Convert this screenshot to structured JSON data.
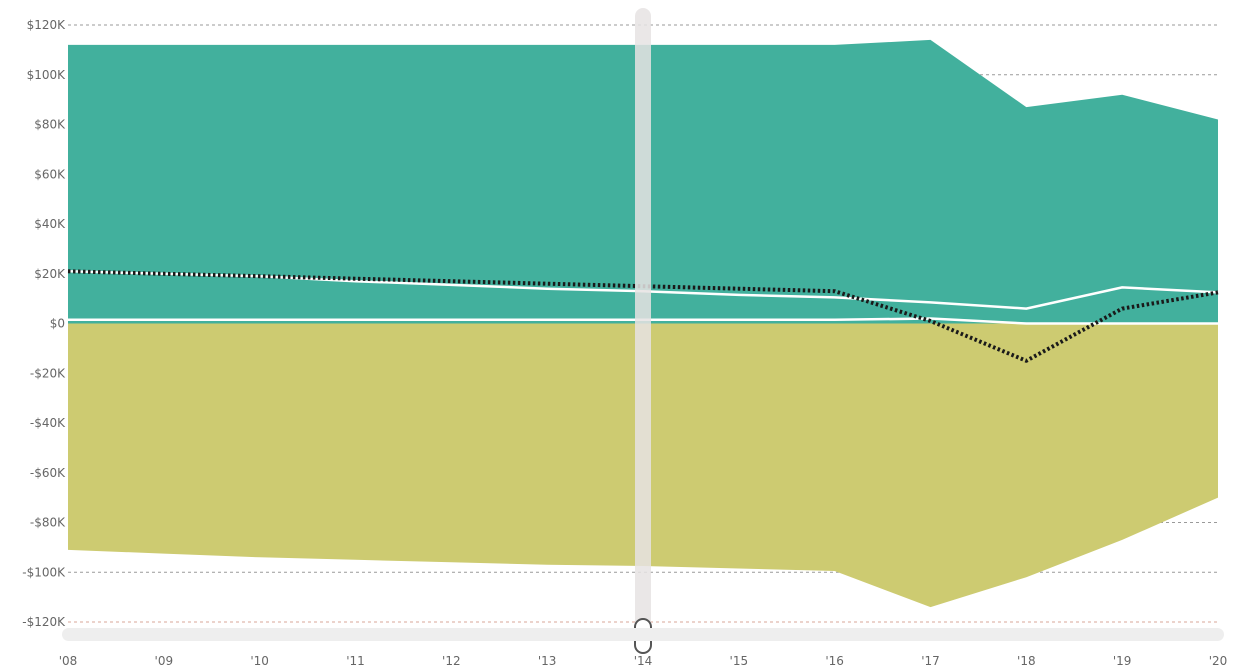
{
  "colors": {
    "positive_area": "#42B09D",
    "negative_area": "#CDCB71",
    "white_line": "#FFFFFF",
    "dotted_line": "#1A1A1A",
    "grid": "#9A9A9A",
    "grid_bottom": "#D9A79A",
    "slider_track": "#E6E3E3",
    "scrollbar": "#EEEEEE",
    "tick_text": "#666666"
  },
  "chart_data": {
    "type": "area",
    "title": "",
    "xlabel": "",
    "ylabel": "",
    "x": [
      "'08",
      "'09",
      "'10",
      "'11",
      "'12",
      "'13",
      "'14",
      "'15",
      "'16",
      "'17",
      "'18",
      "'19",
      "'20"
    ],
    "y_ticks": [
      "$120K",
      "$100K",
      "$80K",
      "$60K",
      "$40K",
      "$20K",
      "$0",
      "-$20K",
      "-$40K",
      "-$60K",
      "-$80K",
      "-$100K",
      "-$120K"
    ],
    "ylim": [
      -120000,
      120000
    ],
    "grid": true,
    "series": [
      {
        "type": "area",
        "values": [
          112000,
          112000,
          112000,
          112000,
          112000,
          112000,
          112000,
          112000,
          112000,
          114000,
          87000,
          92000,
          82000
        ]
      },
      {
        "type": "area",
        "values": [
          -91000,
          -92500,
          -94000,
          -95000,
          -96000,
          -97000,
          -97500,
          -98500,
          -99500,
          -114000,
          -102000,
          -87000,
          -70000
        ]
      },
      {
        "type": "line",
        "values": [
          21000,
          20000,
          19000,
          17000,
          15500,
          14000,
          13000,
          11500,
          10500,
          8500,
          6000,
          14500,
          12500
        ]
      },
      {
        "type": "line",
        "values": [
          1500,
          1500,
          1500,
          1500,
          1500,
          1500,
          1500,
          1500,
          1500,
          2000,
          0,
          0,
          0
        ]
      },
      {
        "type": "dotted-line",
        "values": [
          21000,
          20000,
          19000,
          18000,
          17000,
          16000,
          15000,
          14000,
          13000,
          1000,
          -15000,
          6000,
          12500
        ]
      }
    ],
    "slider_position": "'14"
  }
}
